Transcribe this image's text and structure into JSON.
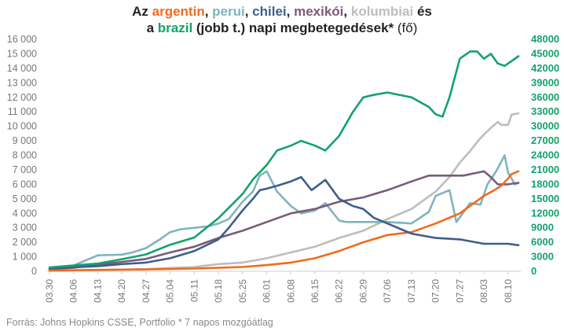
{
  "title": {
    "line1_prefix": "Az ",
    "argentin": "argentin",
    "sep1": ", ",
    "perui": "perui",
    "sep2": ", ",
    "chilei": "chilei",
    "sep3": ", ",
    "mexikoi": "mexikói",
    "sep4": ", ",
    "kolumbiai": "kolumbiai",
    "line1_suffix": " és",
    "line2_prefix": "a ",
    "brazil": "brazil",
    "line2_mid": " (jobb t.) napi megbetegedések*",
    "line2_unit": " (fő)"
  },
  "source": "Forrás: Johns Hopkins CSSE, Portfolio   * 7 napos mozgóátlag",
  "chart_data": {
    "type": "line",
    "title": "Az argentin, perui, chilei, mexikói, kolumbiai és a brazil (jobb t.) napi megbetegedések* (fő)",
    "x_ticks": [
      "03.30",
      "04.06",
      "04.13",
      "04.20",
      "04.27",
      "05.04",
      "05.11",
      "05.18",
      "05.25",
      "06.01",
      "06.08",
      "06.15",
      "06.22",
      "06.29",
      "07.06",
      "07.13",
      "07.20",
      "07.27",
      "08.03",
      "08.10"
    ],
    "x_range_days": [
      0,
      136
    ],
    "y_left": {
      "ticks": [
        "0",
        "1 000",
        "2 000",
        "3 000",
        "4 000",
        "5 000",
        "6 000",
        "7 000",
        "8 000",
        "9 000",
        "10 000",
        "11 000",
        "12 000",
        "13 000",
        "14 000",
        "15 000",
        "16 000"
      ],
      "range": [
        0,
        16000
      ]
    },
    "y_right": {
      "ticks": [
        "0",
        "3000",
        "6000",
        "9000",
        "12000",
        "15000",
        "18000",
        "21000",
        "24000",
        "27000",
        "30000",
        "33000",
        "36000",
        "39000",
        "42000",
        "45000",
        "48000"
      ],
      "range": [
        0,
        48000
      ]
    },
    "series": [
      {
        "name": "argentin",
        "axis": "left",
        "color": "#f26b1d",
        "points": [
          [
            0,
            50
          ],
          [
            14,
            100
          ],
          [
            28,
            130
          ],
          [
            42,
            190
          ],
          [
            56,
            300
          ],
          [
            63,
            430
          ],
          [
            70,
            600
          ],
          [
            77,
            900
          ],
          [
            84,
            1400
          ],
          [
            91,
            2000
          ],
          [
            98,
            2500
          ],
          [
            105,
            2700
          ],
          [
            112,
            3300
          ],
          [
            119,
            4000
          ],
          [
            126,
            5200
          ],
          [
            129,
            5600
          ],
          [
            131,
            5900
          ],
          [
            133,
            6400
          ],
          [
            134,
            6700
          ],
          [
            136,
            6900
          ]
        ]
      },
      {
        "name": "perui",
        "axis": "left",
        "color": "#7fb4bd",
        "points": [
          [
            0,
            150
          ],
          [
            7,
            400
          ],
          [
            14,
            1100
          ],
          [
            21,
            1150
          ],
          [
            24,
            1300
          ],
          [
            28,
            1600
          ],
          [
            32,
            2200
          ],
          [
            35,
            2700
          ],
          [
            38,
            2900
          ],
          [
            42,
            3000
          ],
          [
            46,
            3100
          ],
          [
            49,
            3300
          ],
          [
            52,
            3600
          ],
          [
            54,
            4200
          ],
          [
            56,
            4800
          ],
          [
            59,
            5500
          ],
          [
            61,
            6600
          ],
          [
            63,
            6900
          ],
          [
            66,
            5500
          ],
          [
            70,
            4500
          ],
          [
            73,
            4000
          ],
          [
            77,
            4200
          ],
          [
            80,
            4700
          ],
          [
            84,
            3500
          ],
          [
            86,
            3400
          ],
          [
            91,
            3400
          ],
          [
            98,
            3400
          ],
          [
            105,
            3300
          ],
          [
            110,
            4100
          ],
          [
            112,
            5200
          ],
          [
            116,
            5600
          ],
          [
            118,
            3400
          ],
          [
            122,
            4700
          ],
          [
            125,
            4600
          ],
          [
            127,
            6000
          ],
          [
            129,
            6700
          ],
          [
            130,
            7100
          ],
          [
            132,
            8000
          ],
          [
            133,
            6800
          ],
          [
            135,
            6000
          ],
          [
            136,
            6100
          ]
        ]
      },
      {
        "name": "chilei",
        "axis": "left",
        "color": "#3e5e8c",
        "points": [
          [
            0,
            200
          ],
          [
            14,
            350
          ],
          [
            21,
            500
          ],
          [
            28,
            600
          ],
          [
            35,
            900
          ],
          [
            42,
            1400
          ],
          [
            49,
            2200
          ],
          [
            52,
            3000
          ],
          [
            56,
            4200
          ],
          [
            59,
            5000
          ],
          [
            61,
            5600
          ],
          [
            63,
            5700
          ],
          [
            66,
            5900
          ],
          [
            70,
            6200
          ],
          [
            73,
            6500
          ],
          [
            76,
            5600
          ],
          [
            80,
            6300
          ],
          [
            84,
            5000
          ],
          [
            88,
            4500
          ],
          [
            91,
            4300
          ],
          [
            94,
            3700
          ],
          [
            98,
            3300
          ],
          [
            105,
            2600
          ],
          [
            112,
            2300
          ],
          [
            119,
            2200
          ],
          [
            126,
            1900
          ],
          [
            133,
            1900
          ],
          [
            136,
            1800
          ]
        ]
      },
      {
        "name": "mexikói",
        "axis": "left",
        "color": "#7b5a79",
        "points": [
          [
            0,
            150
          ],
          [
            7,
            250
          ],
          [
            14,
            450
          ],
          [
            21,
            650
          ],
          [
            28,
            850
          ],
          [
            35,
            1300
          ],
          [
            42,
            1700
          ],
          [
            49,
            2300
          ],
          [
            56,
            2800
          ],
          [
            63,
            3400
          ],
          [
            70,
            4000
          ],
          [
            77,
            4300
          ],
          [
            84,
            4800
          ],
          [
            91,
            5100
          ],
          [
            98,
            5600
          ],
          [
            105,
            6200
          ],
          [
            110,
            6600
          ],
          [
            115,
            6600
          ],
          [
            120,
            6600
          ],
          [
            124,
            6800
          ],
          [
            126,
            6900
          ],
          [
            128,
            6500
          ],
          [
            130,
            6000
          ],
          [
            133,
            6000
          ],
          [
            136,
            6100
          ]
        ]
      },
      {
        "name": "kolumbiai",
        "axis": "left",
        "color": "#bdbdbd",
        "points": [
          [
            0,
            50
          ],
          [
            14,
            80
          ],
          [
            28,
            150
          ],
          [
            42,
            300
          ],
          [
            49,
            500
          ],
          [
            56,
            600
          ],
          [
            63,
            900
          ],
          [
            70,
            1300
          ],
          [
            77,
            1700
          ],
          [
            84,
            2300
          ],
          [
            91,
            2800
          ],
          [
            98,
            3600
          ],
          [
            105,
            4300
          ],
          [
            112,
            5500
          ],
          [
            116,
            6500
          ],
          [
            119,
            7500
          ],
          [
            122,
            8300
          ],
          [
            125,
            9200
          ],
          [
            128,
            9900
          ],
          [
            130,
            10300
          ],
          [
            131,
            10100
          ],
          [
            133,
            10100
          ],
          [
            134,
            10800
          ],
          [
            136,
            10900
          ]
        ]
      },
      {
        "name": "brazil",
        "axis": "right",
        "color": "#13a26b",
        "points": [
          [
            0,
            800
          ],
          [
            7,
            1200
          ],
          [
            14,
            1600
          ],
          [
            21,
            2500
          ],
          [
            28,
            3500
          ],
          [
            35,
            5500
          ],
          [
            42,
            7000
          ],
          [
            49,
            11000
          ],
          [
            56,
            16000
          ],
          [
            59,
            19000
          ],
          [
            63,
            22000
          ],
          [
            66,
            25000
          ],
          [
            70,
            26000
          ],
          [
            73,
            27000
          ],
          [
            77,
            26000
          ],
          [
            80,
            25000
          ],
          [
            84,
            28000
          ],
          [
            88,
            33000
          ],
          [
            91,
            36000
          ],
          [
            94,
            36500
          ],
          [
            98,
            37000
          ],
          [
            105,
            36000
          ],
          [
            110,
            34000
          ],
          [
            112,
            32500
          ],
          [
            114,
            32000
          ],
          [
            116,
            36000
          ],
          [
            119,
            44000
          ],
          [
            122,
            45500
          ],
          [
            124,
            45500
          ],
          [
            126,
            44000
          ],
          [
            128,
            45000
          ],
          [
            130,
            43000
          ],
          [
            132,
            42500
          ],
          [
            134,
            43500
          ],
          [
            136,
            44500
          ]
        ]
      }
    ]
  }
}
